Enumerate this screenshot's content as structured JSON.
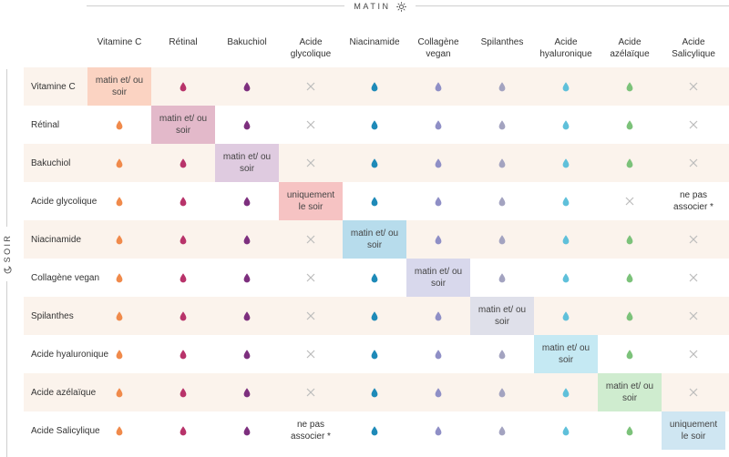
{
  "header": {
    "matin_label": "MATIN",
    "matin_icon": "sun-icon",
    "soir_label": "SOIR",
    "soir_icon": "moon-icon"
  },
  "columns": [
    {
      "id": "vitc",
      "label": "Vitamine C",
      "color": "#f08a4b",
      "self_bg": "#fbd3c2"
    },
    {
      "id": "retinal",
      "label": "Rétinal",
      "color": "#b8336a",
      "self_bg": "#e3b9ca"
    },
    {
      "id": "bakuchiol",
      "label": "Bakuchiol",
      "color": "#7d2f7e",
      "self_bg": "#dfcbe0"
    },
    {
      "id": "glycolique",
      "label": "Acide glycolique",
      "color": "#c8c8c8",
      "self_bg": "#f6c3c3"
    },
    {
      "id": "niacinamide",
      "label": "Niacinamide",
      "color": "#1e8ab8",
      "self_bg": "#b7dcec"
    },
    {
      "id": "collagene",
      "label": "Collagène vegan",
      "color": "#8f8fc6",
      "self_bg": "#d8d8ec"
    },
    {
      "id": "spilanthes",
      "label": "Spilanthes",
      "color": "#a3a3c0",
      "self_bg": "#dfe0ea"
    },
    {
      "id": "hyaluronique",
      "label": "Acide hyaluronique",
      "color": "#5fc0da",
      "self_bg": "#c5e9f3"
    },
    {
      "id": "azelaique",
      "label": "Acide azélaïque",
      "color": "#7cc27a",
      "self_bg": "#cfeccf"
    },
    {
      "id": "salicylique",
      "label": "Acide Salicylique",
      "color": "#c8c8c8",
      "self_bg": "#cfe6f2"
    }
  ],
  "rows": [
    {
      "label": "Vitamine C",
      "cells": [
        "self:matin et/ ou soir",
        "drop",
        "drop",
        "cross",
        "drop",
        "drop",
        "drop",
        "drop",
        "drop",
        "cross"
      ]
    },
    {
      "label": "Rétinal",
      "cells": [
        "drop",
        "self:matin et/ ou soir",
        "drop",
        "cross",
        "drop",
        "drop",
        "drop",
        "drop",
        "drop",
        "cross"
      ]
    },
    {
      "label": "Bakuchiol",
      "cells": [
        "drop",
        "drop",
        "self:matin et/ ou soir",
        "cross",
        "drop",
        "drop",
        "drop",
        "drop",
        "drop",
        "cross"
      ]
    },
    {
      "label": "Acide glycolique",
      "cells": [
        "drop",
        "drop",
        "drop",
        "self:uniquement le soir",
        "drop",
        "drop",
        "drop",
        "drop",
        "cross",
        "text:ne pas associer *"
      ]
    },
    {
      "label": "Niacinamide",
      "cells": [
        "drop",
        "drop",
        "drop",
        "cross",
        "self:matin et/ ou soir",
        "drop",
        "drop",
        "drop",
        "drop",
        "cross"
      ]
    },
    {
      "label": "Collagène vegan",
      "cells": [
        "drop",
        "drop",
        "drop",
        "cross",
        "drop",
        "self:matin et/ ou soir",
        "drop",
        "drop",
        "drop",
        "cross"
      ]
    },
    {
      "label": "Spilanthes",
      "cells": [
        "drop",
        "drop",
        "drop",
        "cross",
        "drop",
        "drop",
        "self:matin et/ ou soir",
        "drop",
        "drop",
        "cross"
      ]
    },
    {
      "label": "Acide hyaluronique",
      "cells": [
        "drop",
        "drop",
        "drop",
        "cross",
        "drop",
        "drop",
        "drop",
        "self:matin et/ ou soir",
        "drop",
        "cross"
      ]
    },
    {
      "label": "Acide azélaïque",
      "cells": [
        "drop",
        "drop",
        "drop",
        "cross",
        "drop",
        "drop",
        "drop",
        "drop",
        "self:matin et/ ou soir",
        "cross"
      ]
    },
    {
      "label": "Acide Salicylique",
      "cells": [
        "drop",
        "drop",
        "drop",
        "text:ne pas associer *",
        "drop",
        "drop",
        "drop",
        "drop",
        "drop",
        "self:uniquement le soir"
      ]
    }
  ],
  "colors": {
    "cross": "#bdbdbd",
    "alt_row_bg": "#fbf3ec"
  }
}
